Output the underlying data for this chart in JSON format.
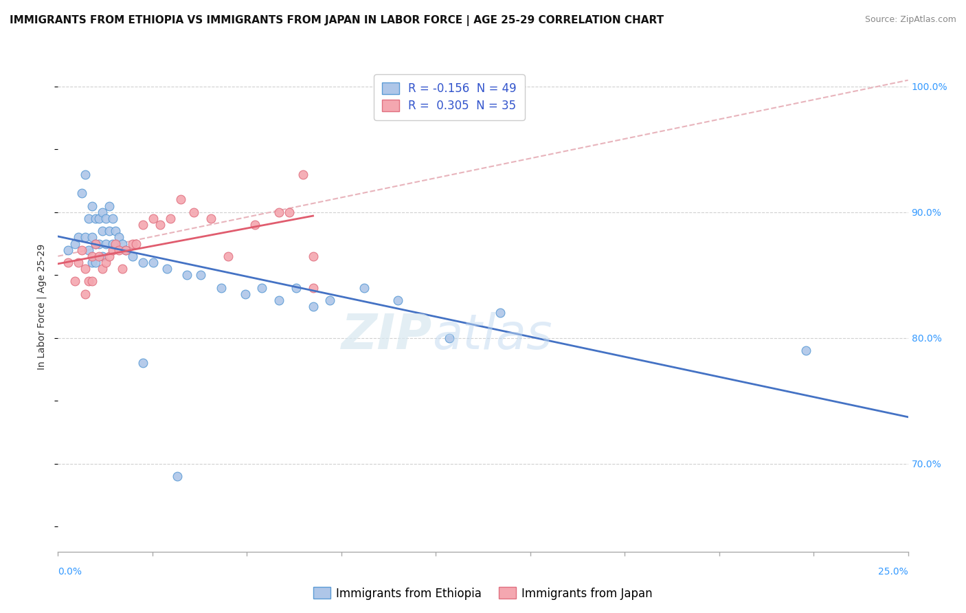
{
  "title": "IMMIGRANTS FROM ETHIOPIA VS IMMIGRANTS FROM JAPAN IN LABOR FORCE | AGE 25-29 CORRELATION CHART",
  "source": "Source: ZipAtlas.com",
  "ylabel": "In Labor Force | Age 25-29",
  "legend_ethiopia": "R = -0.156  N = 49",
  "legend_japan": "R =  0.305  N = 35",
  "legend_label_ethiopia": "Immigrants from Ethiopia",
  "legend_label_japan": "Immigrants from Japan",
  "watermark_zip": "ZIP",
  "watermark_atlas": "atlas",
  "ethiopia_color": "#aec6e8",
  "japan_color": "#f4a7b0",
  "ethiopia_edge_color": "#5b9bd5",
  "japan_edge_color": "#e07080",
  "ethiopia_line_color": "#4472c4",
  "japan_line_color": "#e05c6e",
  "dashed_line_color": "#e8b4bc",
  "xlim": [
    0.0,
    0.25
  ],
  "ylim": [
    0.63,
    1.02
  ],
  "ethiopia_x": [
    0.003,
    0.005,
    0.006,
    0.007,
    0.008,
    0.008,
    0.009,
    0.009,
    0.01,
    0.01,
    0.01,
    0.011,
    0.011,
    0.011,
    0.012,
    0.012,
    0.013,
    0.013,
    0.013,
    0.014,
    0.014,
    0.015,
    0.015,
    0.016,
    0.016,
    0.017,
    0.018,
    0.019,
    0.02,
    0.022,
    0.025,
    0.028,
    0.032,
    0.038,
    0.042,
    0.048,
    0.055,
    0.06,
    0.065,
    0.07,
    0.075,
    0.08,
    0.09,
    0.1,
    0.115,
    0.13,
    0.22,
    0.025,
    0.035
  ],
  "ethiopia_y": [
    0.87,
    0.875,
    0.88,
    0.915,
    0.93,
    0.88,
    0.895,
    0.87,
    0.905,
    0.88,
    0.86,
    0.895,
    0.875,
    0.86,
    0.895,
    0.875,
    0.9,
    0.885,
    0.865,
    0.895,
    0.875,
    0.905,
    0.885,
    0.895,
    0.875,
    0.885,
    0.88,
    0.875,
    0.87,
    0.865,
    0.86,
    0.86,
    0.855,
    0.85,
    0.85,
    0.84,
    0.835,
    0.84,
    0.83,
    0.84,
    0.825,
    0.83,
    0.84,
    0.83,
    0.8,
    0.82,
    0.79,
    0.78,
    0.69
  ],
  "japan_x": [
    0.003,
    0.005,
    0.006,
    0.007,
    0.008,
    0.008,
    0.009,
    0.01,
    0.01,
    0.011,
    0.012,
    0.013,
    0.014,
    0.015,
    0.016,
    0.017,
    0.018,
    0.019,
    0.02,
    0.022,
    0.023,
    0.025,
    0.028,
    0.03,
    0.033,
    0.036,
    0.04,
    0.045,
    0.05,
    0.058,
    0.065,
    0.068,
    0.072,
    0.075,
    0.075
  ],
  "japan_y": [
    0.86,
    0.845,
    0.86,
    0.87,
    0.855,
    0.835,
    0.845,
    0.865,
    0.845,
    0.875,
    0.865,
    0.855,
    0.86,
    0.865,
    0.87,
    0.875,
    0.87,
    0.855,
    0.87,
    0.875,
    0.875,
    0.89,
    0.895,
    0.89,
    0.895,
    0.91,
    0.9,
    0.895,
    0.865,
    0.89,
    0.9,
    0.9,
    0.93,
    0.865,
    0.84
  ],
  "title_fontsize": 11,
  "source_fontsize": 9,
  "axis_label_fontsize": 10,
  "tick_fontsize": 10,
  "legend_fontsize": 12,
  "watermark_fontsize": 52
}
